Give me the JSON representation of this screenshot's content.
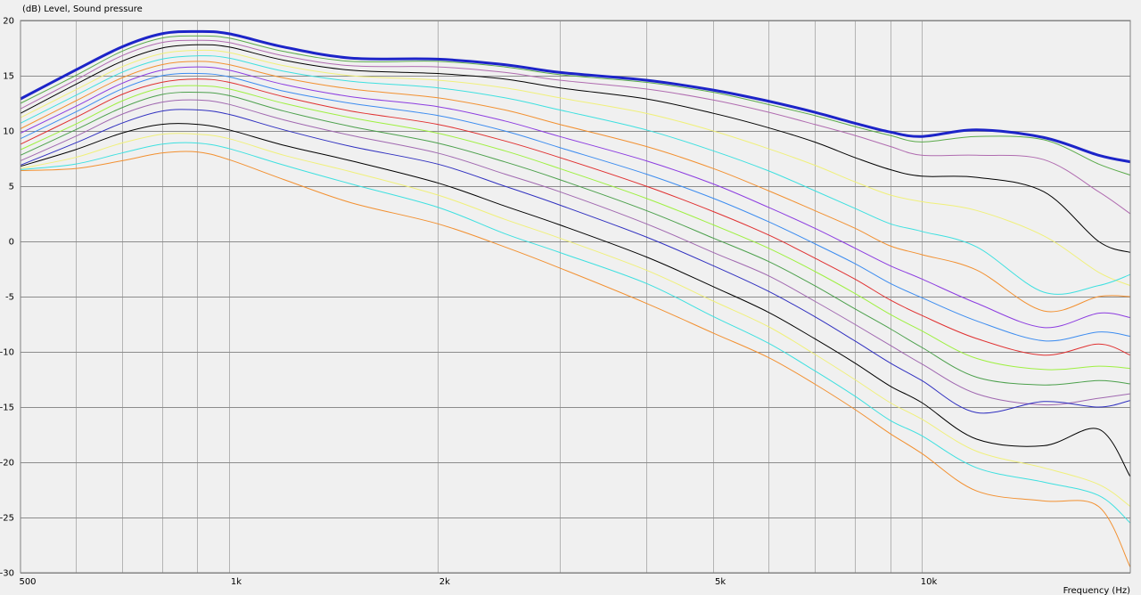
{
  "chart_data": {
    "type": "line",
    "title": "",
    "ylabel": "(dB)  Level, Sound pressure",
    "xlabel": "Frequency  (Hz)",
    "xscale": "log",
    "xlim": [
      500,
      20000
    ],
    "ylim": [
      -30,
      20
    ],
    "grid": true,
    "x_ticks": [
      {
        "value": 500,
        "label": "500"
      },
      {
        "value": 1000,
        "label": "1k"
      },
      {
        "value": 2000,
        "label": "2k"
      },
      {
        "value": 5000,
        "label": "5k"
      },
      {
        "value": 10000,
        "label": "10k"
      }
    ],
    "y_ticks": [
      {
        "value": 20,
        "label": "20"
      },
      {
        "value": 15,
        "label": "15"
      },
      {
        "value": 10,
        "label": "10"
      },
      {
        "value": 5,
        "label": "5"
      },
      {
        "value": 0,
        "label": "0"
      },
      {
        "value": -5,
        "label": "-5"
      },
      {
        "value": -10,
        "label": "-10"
      },
      {
        "value": -15,
        "label": "-15"
      },
      {
        "value": -20,
        "label": "-20"
      },
      {
        "value": -25,
        "label": "-25"
      },
      {
        "value": -30,
        "label": "-30"
      }
    ],
    "x": [
      500,
      600,
      700,
      800,
      900,
      1000,
      1200,
      1500,
      2000,
      2500,
      3000,
      4000,
      5000,
      6000,
      7000,
      8000,
      9000,
      10000,
      12000,
      15000,
      18000,
      20000
    ],
    "series": [
      {
        "color": "#1c24c8",
        "bold": true,
        "values": [
          12.9,
          15.5,
          17.6,
          18.8,
          19.0,
          18.8,
          17.6,
          16.6,
          16.5,
          16.0,
          15.3,
          14.6,
          13.7,
          12.7,
          11.7,
          10.7,
          9.9,
          9.5,
          10.1,
          9.4,
          7.8,
          7.2
        ]
      },
      {
        "color": "#5aaa4a",
        "values": [
          12.5,
          15.0,
          17.2,
          18.4,
          18.6,
          18.4,
          17.2,
          16.3,
          16.3,
          15.8,
          15.1,
          14.4,
          13.5,
          12.4,
          11.4,
          10.4,
          9.6,
          9.0,
          9.5,
          9.2,
          7.0,
          6.0
        ]
      },
      {
        "color": "#b06cb0",
        "values": [
          12.0,
          14.6,
          16.8,
          18.0,
          18.2,
          18.0,
          16.8,
          15.9,
          15.8,
          15.3,
          14.6,
          13.8,
          12.8,
          11.7,
          10.6,
          9.6,
          8.6,
          7.8,
          7.8,
          7.4,
          4.5,
          2.5
        ]
      },
      {
        "color": "#000000",
        "values": [
          11.6,
          14.2,
          16.3,
          17.5,
          17.8,
          17.6,
          16.4,
          15.5,
          15.2,
          14.7,
          13.9,
          12.9,
          11.6,
          10.3,
          9.0,
          7.6,
          6.5,
          5.9,
          5.8,
          4.5,
          0.0,
          -1.0
        ]
      },
      {
        "color": "#f0f07a",
        "values": [
          11.2,
          13.7,
          15.8,
          17.0,
          17.3,
          17.1,
          15.9,
          15.0,
          14.6,
          13.9,
          13.0,
          11.6,
          10.0,
          8.4,
          6.9,
          5.4,
          4.2,
          3.6,
          2.8,
          0.5,
          -2.8,
          -4.0
        ]
      },
      {
        "color": "#3ee0e0",
        "values": [
          10.7,
          13.2,
          15.3,
          16.5,
          16.8,
          16.6,
          15.4,
          14.5,
          13.9,
          13.0,
          11.9,
          10.1,
          8.2,
          6.4,
          4.6,
          3.0,
          1.6,
          0.9,
          -0.5,
          -4.6,
          -4.0,
          -3.0
        ]
      },
      {
        "color": "#f29030",
        "values": [
          10.2,
          12.7,
          14.8,
          16.0,
          16.3,
          16.0,
          14.8,
          13.8,
          13.0,
          11.9,
          10.6,
          8.6,
          6.6,
          4.6,
          2.8,
          1.2,
          -0.4,
          -1.2,
          -2.6,
          -6.3,
          -5.0,
          -5.0
        ]
      },
      {
        "color": "#8c3ce0",
        "values": [
          9.8,
          12.2,
          14.3,
          15.5,
          15.8,
          15.5,
          14.2,
          13.1,
          12.2,
          10.9,
          9.5,
          7.3,
          5.2,
          3.1,
          1.2,
          -0.6,
          -2.2,
          -3.4,
          -5.6,
          -7.8,
          -6.5,
          -6.9
        ]
      },
      {
        "color": "#3c8cf0",
        "values": [
          9.3,
          11.7,
          13.8,
          15.0,
          15.2,
          14.9,
          13.6,
          12.5,
          11.4,
          10.0,
          8.5,
          6.1,
          3.9,
          1.8,
          -0.2,
          -2.0,
          -3.8,
          -5.1,
          -7.2,
          -9.0,
          -8.2,
          -8.6
        ]
      },
      {
        "color": "#e03030",
        "values": [
          8.8,
          11.2,
          13.3,
          14.4,
          14.7,
          14.4,
          13.1,
          11.8,
          10.6,
          9.1,
          7.6,
          5.0,
          2.7,
          0.6,
          -1.5,
          -3.4,
          -5.3,
          -6.7,
          -8.8,
          -10.3,
          -9.3,
          -10.3
        ]
      },
      {
        "color": "#9ef040",
        "values": [
          8.3,
          10.6,
          12.7,
          13.9,
          14.1,
          13.8,
          12.5,
          11.2,
          9.8,
          8.2,
          6.6,
          3.9,
          1.5,
          -0.6,
          -2.7,
          -4.7,
          -6.6,
          -8.1,
          -10.6,
          -11.6,
          -11.3,
          -11.5
        ]
      },
      {
        "color": "#4ca04c",
        "values": [
          7.8,
          10.1,
          12.1,
          13.3,
          13.5,
          13.2,
          11.8,
          10.4,
          8.9,
          7.2,
          5.6,
          2.8,
          0.3,
          -1.8,
          -4.0,
          -6.1,
          -7.9,
          -9.6,
          -12.3,
          -13.0,
          -12.6,
          -12.9
        ]
      },
      {
        "color": "#a068b0",
        "values": [
          7.3,
          9.5,
          11.5,
          12.6,
          12.8,
          12.4,
          11.0,
          9.6,
          8.0,
          6.1,
          4.5,
          1.6,
          -1.0,
          -3.1,
          -5.4,
          -7.5,
          -9.4,
          -11.1,
          -13.8,
          -14.8,
          -14.2,
          -13.8
        ]
      },
      {
        "color": "#3030c0",
        "values": [
          6.9,
          8.9,
          10.7,
          11.8,
          11.9,
          11.5,
          10.1,
          8.6,
          7.0,
          5.0,
          3.3,
          0.4,
          -2.2,
          -4.5,
          -6.8,
          -9.0,
          -11.0,
          -12.6,
          -15.5,
          -14.5,
          -15.0,
          -14.4
        ]
      },
      {
        "color": "#000000",
        "values": [
          6.8,
          8.3,
          9.8,
          10.6,
          10.6,
          10.1,
          8.7,
          7.3,
          5.3,
          3.2,
          1.5,
          -1.4,
          -4.1,
          -6.4,
          -8.8,
          -11.0,
          -13.1,
          -14.6,
          -17.9,
          -18.5,
          -17.0,
          -21.3
        ]
      },
      {
        "color": "#f0f07a",
        "values": [
          6.6,
          7.6,
          8.9,
          9.7,
          9.7,
          9.3,
          7.8,
          6.3,
          4.2,
          2.0,
          0.3,
          -2.6,
          -5.4,
          -7.7,
          -10.2,
          -12.5,
          -14.6,
          -16.1,
          -19.0,
          -20.5,
          -22.0,
          -24.0
        ]
      },
      {
        "color": "#3ee0e0",
        "values": [
          6.5,
          7.0,
          8.0,
          8.8,
          8.9,
          8.4,
          6.9,
          5.2,
          3.1,
          0.7,
          -1.0,
          -3.8,
          -6.8,
          -9.2,
          -11.7,
          -14.0,
          -16.2,
          -17.6,
          -20.5,
          -21.8,
          -23.0,
          -25.5
        ]
      },
      {
        "color": "#f29030",
        "values": [
          6.4,
          6.6,
          7.3,
          8.0,
          8.1,
          7.4,
          5.6,
          3.5,
          1.6,
          -0.5,
          -2.4,
          -5.6,
          -8.3,
          -10.5,
          -12.9,
          -15.2,
          -17.4,
          -19.2,
          -22.6,
          -23.5,
          -24.0,
          -29.5
        ]
      }
    ]
  }
}
